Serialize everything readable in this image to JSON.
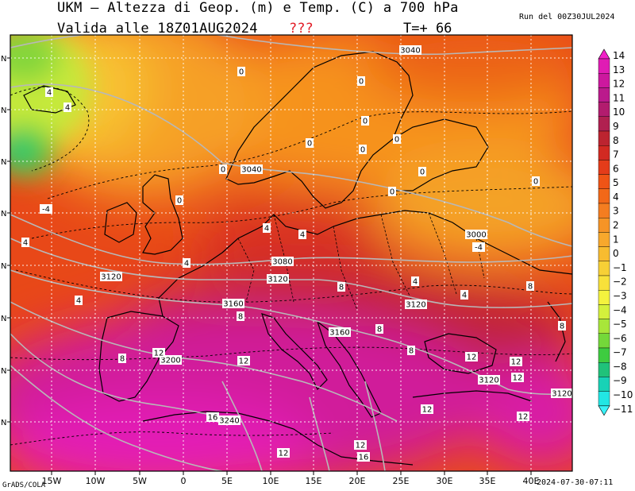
{
  "header": {
    "title": "UKM — Altezza di Geop. (m) e Temp. (C) a 700 hPa",
    "valid": "Valida alle 18Z01AUG2024",
    "flag": "???",
    "timestep": "T=+ 66",
    "run": "Run del 00Z30JUL2024"
  },
  "footer": {
    "credit": "GrADS/COLA",
    "timestamp": "2024-07-30-07:11"
  },
  "colors": {
    "frame": "#000000",
    "grid": "#ffffff",
    "coast": "#000000",
    "geop_contour": "#b8b8b8"
  },
  "map": {
    "lon_labels": [
      "15W",
      "10W",
      "5W",
      "0",
      "5E",
      "10E",
      "15E",
      "20E",
      "25E",
      "30E",
      "35E",
      "40E"
    ],
    "lat_labels": [
      "N",
      "N",
      "N",
      "N",
      "N",
      "N",
      "N",
      "N"
    ],
    "geop_labels": [
      "3040",
      "3040",
      "3000",
      "3080",
      "3120",
      "3120",
      "3120",
      "3160",
      "3160",
      "3200",
      "3120",
      "3120",
      "3240"
    ],
    "temp_labels": [
      "0",
      "0",
      "0",
      "0",
      "0",
      "0",
      "0",
      "0",
      "0",
      "0",
      "0",
      "-4",
      "-4",
      "4",
      "4",
      "4",
      "4",
      "4",
      "4",
      "4",
      "4",
      "4",
      "8",
      "8",
      "8",
      "8",
      "8",
      "8",
      "8",
      "12",
      "12",
      "12",
      "12",
      "12",
      "12",
      "12",
      "12",
      "12",
      "16",
      "16"
    ]
  },
  "colorbar": {
    "levels": [
      "14",
      "13",
      "12",
      "11",
      "10",
      "9",
      "8",
      "7",
      "6",
      "5",
      "4",
      "3",
      "2",
      "1",
      "0",
      "−1",
      "−2",
      "−3",
      "−4",
      "−5",
      "−6",
      "−7",
      "−8",
      "−9",
      "−10",
      "−11"
    ],
    "colors": [
      "#f21fc8",
      "#e01cb4",
      "#cc189e",
      "#bb1a8c",
      "#b21c6e",
      "#b02050",
      "#bc2430",
      "#d22a22",
      "#e43c1a",
      "#ef5416",
      "#f26818",
      "#f47d20",
      "#f69426",
      "#f8a82c",
      "#f8bc30",
      "#f7d036",
      "#f8e13a",
      "#f4f23e",
      "#d4f03c",
      "#a8e63a",
      "#74d83a",
      "#3ecc40",
      "#20c27a",
      "#18d2b6",
      "#22e6e4",
      "#3af2f8"
    ]
  }
}
